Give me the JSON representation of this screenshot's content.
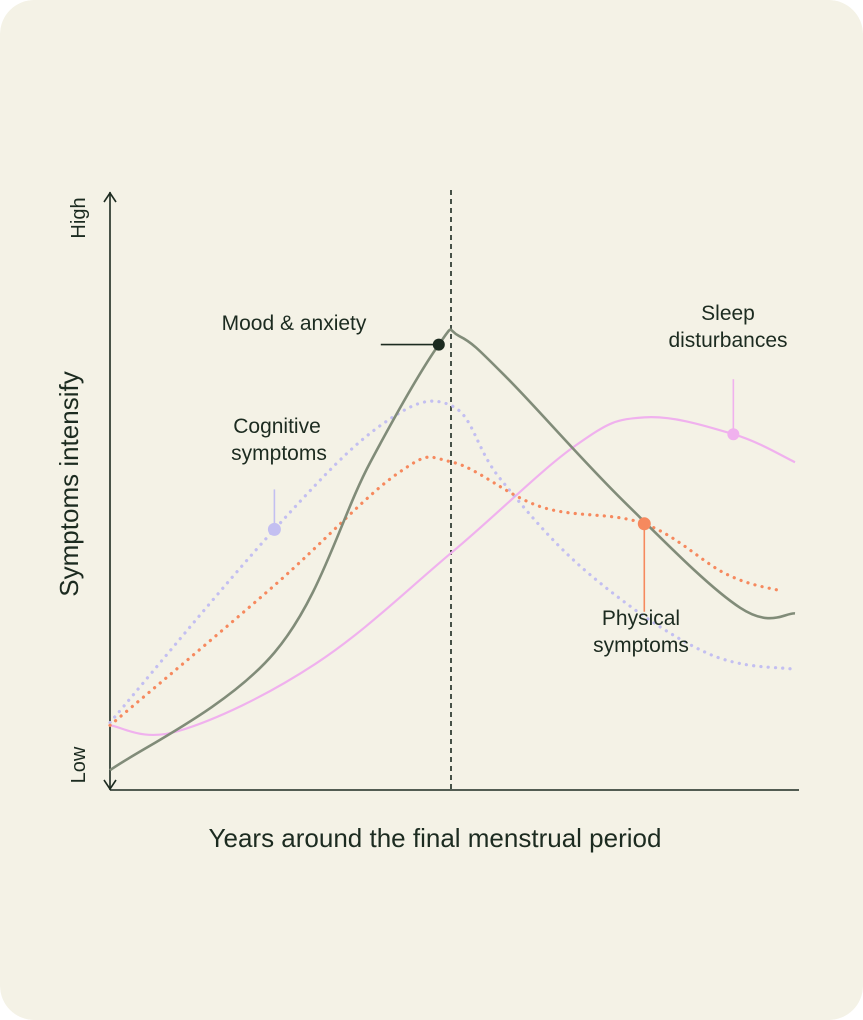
{
  "colors": {
    "background": "#f4f2e6",
    "ink": "#1c2b20",
    "mood": "#818c79",
    "cognitive": "#c3bff1",
    "physical": "#f6895e",
    "sleep": "#f0b1ee",
    "mood_marker": "#1c2b20"
  },
  "chart_data": {
    "type": "line",
    "xlabel": "Years around the final menstrual period",
    "ylabel": "Symptoms intensify",
    "y_ticks": [
      "Low",
      "High"
    ],
    "x_range": [
      0,
      100
    ],
    "y_range": [
      0,
      100
    ],
    "reference_line": {
      "x": 50,
      "style": "dashed"
    },
    "series": [
      {
        "key": "mood",
        "name": "Mood & anxiety",
        "style": "solid",
        "points": [
          [
            0,
            3
          ],
          [
            24,
            24
          ],
          [
            38,
            58
          ],
          [
            48,
            79
          ],
          [
            51,
            80.5
          ],
          [
            58,
            73
          ],
          [
            75,
            51
          ],
          [
            92,
            32
          ],
          [
            100,
            31
          ]
        ],
        "x": [
          0,
          24,
          38,
          48,
          51,
          58,
          75,
          92,
          100
        ],
        "y": [
          3,
          24,
          58,
          79,
          80.5,
          73,
          51,
          32,
          31
        ],
        "marker": [
          48,
          79
        ]
      },
      {
        "key": "cognitive",
        "name": "Cognitive symptoms",
        "style": "dotted",
        "points": [
          [
            0,
            11.5
          ],
          [
            24,
            46
          ],
          [
            40,
            65
          ],
          [
            50,
            68
          ],
          [
            57,
            55
          ],
          [
            70,
            38
          ],
          [
            87,
            24
          ],
          [
            100,
            21
          ]
        ],
        "x": [
          0,
          24,
          40,
          50,
          57,
          70,
          87,
          100
        ],
        "y": [
          11.5,
          46,
          65,
          68,
          55,
          38,
          24,
          21
        ],
        "marker": [
          24,
          46
        ]
      },
      {
        "key": "physical",
        "name": "Physical symptoms",
        "style": "dotted",
        "points": [
          [
            0,
            11
          ],
          [
            24,
            36
          ],
          [
            42,
            56
          ],
          [
            50,
            58
          ],
          [
            63,
            50
          ],
          [
            78,
            47
          ],
          [
            90,
            38
          ],
          [
            98,
            35
          ]
        ],
        "x": [
          0,
          24,
          42,
          50,
          63,
          78,
          90,
          98
        ],
        "y": [
          11,
          36,
          56,
          58,
          50,
          47,
          38,
          35
        ],
        "marker": [
          78,
          47
        ]
      },
      {
        "key": "sleep",
        "name": "Sleep disturbances",
        "style": "solid",
        "points": [
          [
            0,
            11
          ],
          [
            10,
            10
          ],
          [
            30,
            22
          ],
          [
            50,
            42
          ],
          [
            68,
            61
          ],
          [
            78,
            66
          ],
          [
            91,
            63
          ],
          [
            100,
            58
          ]
        ],
        "x": [
          0,
          10,
          30,
          50,
          68,
          78,
          91,
          100
        ],
        "y": [
          11,
          10,
          22,
          42,
          61,
          66,
          63,
          58
        ],
        "marker": [
          91,
          63
        ]
      }
    ],
    "annotations": [
      {
        "series": "mood",
        "lines": [
          "Mood & anxiety"
        ]
      },
      {
        "series": "cognitive",
        "lines": [
          "Cognitive",
          "symptoms"
        ]
      },
      {
        "series": "physical",
        "lines": [
          "Physical",
          "symptoms"
        ]
      },
      {
        "series": "sleep",
        "lines": [
          "Sleep",
          "disturbances"
        ]
      }
    ],
    "grid": false,
    "legend": "none"
  }
}
